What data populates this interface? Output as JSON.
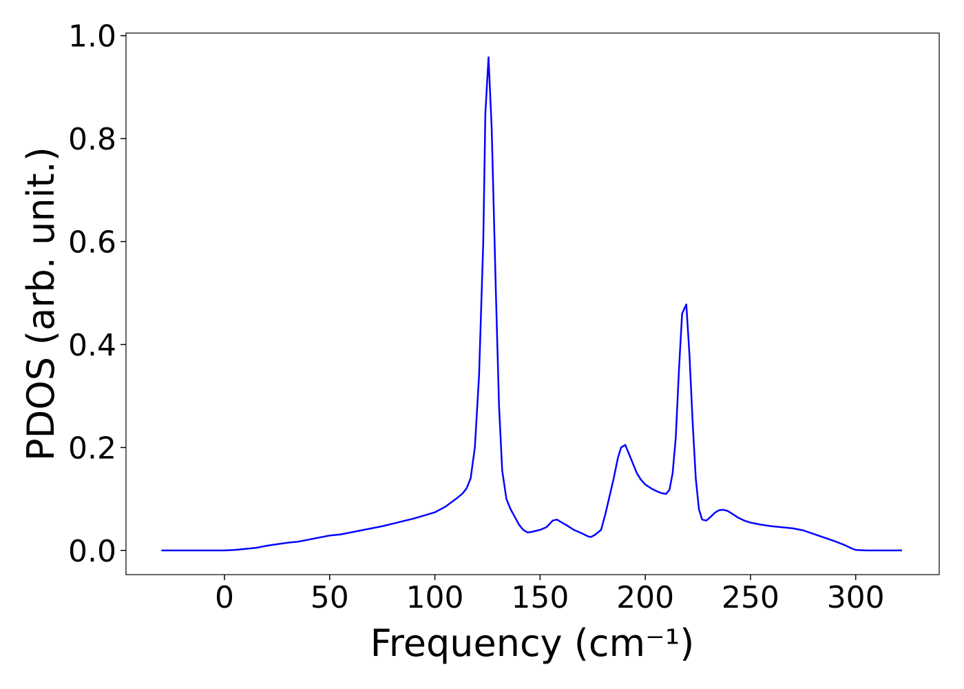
{
  "chart_data": {
    "type": "line",
    "xlabel": "Frequency (cm⁻¹)",
    "ylabel": "PDOS (arb. unit.)",
    "xlim": [
      -46.8,
      339.7
    ],
    "ylim": [
      -0.047,
      1.005
    ],
    "xticks": [
      0,
      50,
      100,
      150,
      200,
      250,
      300
    ],
    "yticks": [
      {
        "value": 0,
        "label": "0.0"
      },
      {
        "value": 0.2,
        "label": "0.2"
      },
      {
        "value": 0.4,
        "label": "0.4"
      },
      {
        "value": 0.6,
        "label": "0.6"
      },
      {
        "value": 0.8,
        "label": "0.8"
      },
      {
        "value": 1,
        "label": "1.0"
      }
    ],
    "grid": false,
    "series": [
      {
        "color": "#0000ff",
        "x": [
          -30,
          -20,
          -10,
          0,
          5,
          10,
          15,
          20,
          25,
          30,
          35,
          40,
          45,
          50,
          55,
          60,
          65,
          70,
          75,
          80,
          85,
          90,
          95,
          100,
          105,
          110,
          113,
          115,
          117,
          119,
          121,
          123,
          124,
          125.5,
          127,
          129,
          130.5,
          132,
          134,
          136,
          138,
          140,
          142,
          144,
          146,
          150,
          153,
          156,
          158,
          160,
          163,
          166,
          170,
          173,
          174,
          176,
          179,
          181,
          183,
          185,
          187,
          188.5,
          190.5,
          192,
          194,
          196,
          198,
          200,
          203,
          206,
          208,
          210,
          211.5,
          213,
          214.5,
          216,
          217.5,
          219.5,
          221,
          222.5,
          224,
          225.5,
          227,
          229,
          231,
          233,
          235,
          237,
          239,
          241,
          244,
          247,
          250,
          255,
          260,
          265,
          270,
          275,
          280,
          285,
          290,
          295,
          298,
          300,
          305,
          310,
          322
        ],
        "values": [
          0,
          0,
          0,
          0,
          0.001,
          0.003,
          0.005,
          0.009,
          0.012,
          0.015,
          0.017,
          0.021,
          0.025,
          0.029,
          0.031,
          0.035,
          0.039,
          0.043,
          0.047,
          0.052,
          0.057,
          0.062,
          0.068,
          0.074,
          0.085,
          0.1,
          0.11,
          0.12,
          0.14,
          0.2,
          0.34,
          0.6,
          0.85,
          0.958,
          0.82,
          0.5,
          0.28,
          0.155,
          0.1,
          0.08,
          0.065,
          0.05,
          0.04,
          0.035,
          0.036,
          0.04,
          0.045,
          0.058,
          0.06,
          0.055,
          0.048,
          0.04,
          0.033,
          0.027,
          0.026,
          0.03,
          0.04,
          0.07,
          0.105,
          0.14,
          0.18,
          0.2,
          0.205,
          0.19,
          0.17,
          0.15,
          0.137,
          0.128,
          0.12,
          0.114,
          0.111,
          0.11,
          0.118,
          0.15,
          0.22,
          0.35,
          0.46,
          0.478,
          0.38,
          0.25,
          0.14,
          0.08,
          0.06,
          0.058,
          0.065,
          0.073,
          0.078,
          0.079,
          0.077,
          0.072,
          0.064,
          0.058,
          0.054,
          0.05,
          0.047,
          0.045,
          0.043,
          0.039,
          0.032,
          0.025,
          0.018,
          0.01,
          0.004,
          0.001,
          0,
          0,
          0
        ]
      }
    ]
  }
}
